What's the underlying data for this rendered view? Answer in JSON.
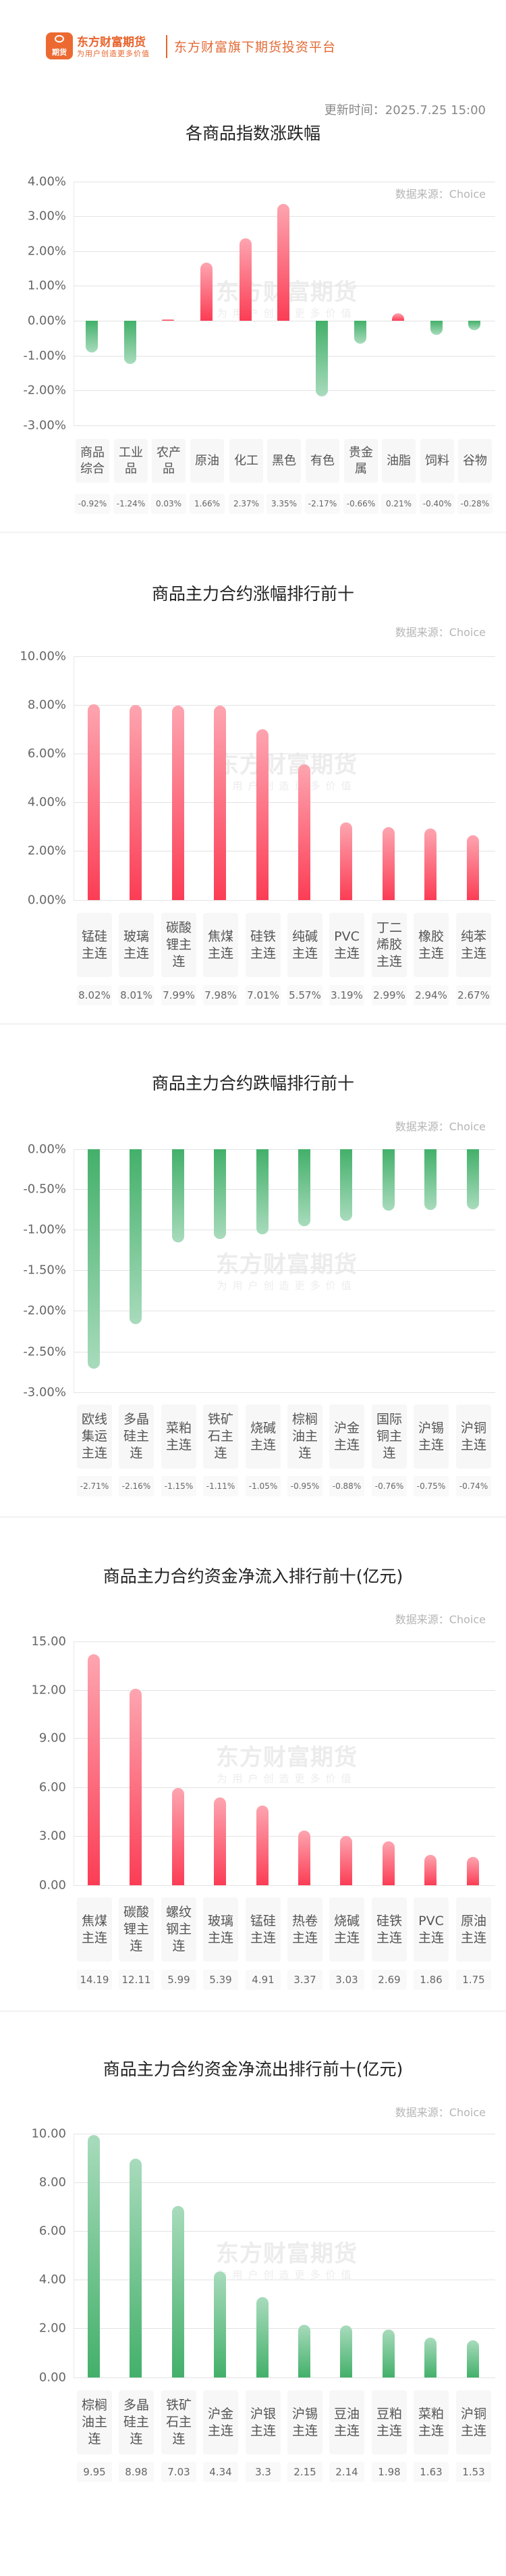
{
  "header": {
    "logo_badge": "期货",
    "brand_name": "东方财富期货",
    "brand_slogan": "为用户创造更多价值",
    "platform_text": "东方财富旗下期货投资平台",
    "update_time": "更新时间：2025.7.25 15:00"
  },
  "source_label": "数据来源：Choice",
  "watermark": {
    "main": "东方财富期货",
    "sub": "为用户创造更多价值"
  },
  "colors": {
    "brand": "#e8632b",
    "up": "#fb3d55",
    "down": "#43b06a"
  },
  "chart_data": [
    {
      "type": "bar",
      "title": "各商品指数涨跌幅",
      "categories": [
        "商品综合",
        "工业品",
        "农产品",
        "原油",
        "化工",
        "黑色",
        "有色",
        "贵金属",
        "油脂",
        "饲料",
        "谷物"
      ],
      "values": [
        -0.92,
        -1.24,
        0.03,
        1.66,
        2.37,
        3.35,
        -2.17,
        -0.66,
        0.21,
        -0.4,
        -0.28
      ],
      "value_labels": [
        "-0.92%",
        "-1.24%",
        "0.03%",
        "1.66%",
        "2.37%",
        "3.35%",
        "-2.17%",
        "-0.66%",
        "0.21%",
        "-0.40%",
        "-0.28%"
      ],
      "yticks": [
        "4.00%",
        "3.00%",
        "2.00%",
        "1.00%",
        "0.00%",
        "-1.00%",
        "-2.00%",
        "-3.00%"
      ],
      "ylim": [
        -3,
        4
      ],
      "unit": "%",
      "grid": true,
      "source": "数据来源：Choice"
    },
    {
      "type": "bar",
      "title": "商品主力合约涨幅排行前十",
      "categories": [
        "锰硅主连",
        "玻璃主连",
        "碳酸锂主连",
        "焦煤主连",
        "硅铁主连",
        "纯碱主连",
        "PVC主连",
        "丁二烯胶主连",
        "橡胶主连",
        "纯苯主连"
      ],
      "values": [
        8.02,
        8.01,
        7.99,
        7.98,
        7.01,
        5.57,
        3.19,
        2.99,
        2.94,
        2.67
      ],
      "value_labels": [
        "8.02%",
        "8.01%",
        "7.99%",
        "7.98%",
        "7.01%",
        "5.57%",
        "3.19%",
        "2.99%",
        "2.94%",
        "2.67%"
      ],
      "yticks": [
        "10.00%",
        "8.00%",
        "6.00%",
        "4.00%",
        "2.00%",
        "0.00%"
      ],
      "ylim": [
        0,
        10
      ],
      "unit": "%",
      "grid": true,
      "source": "数据来源：Choice"
    },
    {
      "type": "bar",
      "title": "商品主力合约跌幅排行前十",
      "categories": [
        "欧线集运主连",
        "多晶硅主连",
        "菜粕主连",
        "铁矿石主连",
        "烧碱主连",
        "棕榈油主连",
        "沪金主连",
        "国际铜主连",
        "沪锡主连",
        "沪铜主连"
      ],
      "values": [
        -2.71,
        -2.16,
        -1.15,
        -1.11,
        -1.05,
        -0.95,
        -0.88,
        -0.76,
        -0.75,
        -0.74
      ],
      "value_labels": [
        "-2.71%",
        "-2.16%",
        "-1.15%",
        "-1.11%",
        "-1.05%",
        "-0.95%",
        "-0.88%",
        "-0.76%",
        "-0.75%",
        "-0.74%"
      ],
      "yticks": [
        "0.00%",
        "-0.50%",
        "-1.00%",
        "-1.50%",
        "-2.00%",
        "-2.50%",
        "-3.00%"
      ],
      "ylim": [
        -3,
        0
      ],
      "unit": "%",
      "grid": true,
      "source": "数据来源：Choice"
    },
    {
      "type": "bar",
      "title": "商品主力合约资金净流入排行前十(亿元)",
      "categories": [
        "焦煤主连",
        "碳酸锂主连",
        "螺纹钢主连",
        "玻璃主连",
        "锰硅主连",
        "热卷主连",
        "烧碱主连",
        "硅铁主连",
        "PVC主连",
        "原油主连"
      ],
      "values": [
        14.19,
        12.11,
        5.99,
        5.39,
        4.91,
        3.37,
        3.03,
        2.69,
        1.86,
        1.75
      ],
      "value_labels": [
        "14.19",
        "12.11",
        "5.99",
        "5.39",
        "4.91",
        "3.37",
        "3.03",
        "2.69",
        "1.86",
        "1.75"
      ],
      "yticks": [
        "15.00",
        "12.00",
        "9.00",
        "6.00",
        "3.00",
        "0.00"
      ],
      "ylim": [
        0,
        15
      ],
      "unit": "亿元",
      "grid": true,
      "source": "数据来源：Choice"
    },
    {
      "type": "bar",
      "title": "商品主力合约资金净流出排行前十(亿元)",
      "categories": [
        "棕榈油主连",
        "多晶硅主连",
        "铁矿石主连",
        "沪金主连",
        "沪银主连",
        "沪锡主连",
        "豆油主连",
        "豆粕主连",
        "菜粕主连",
        "沪铜主连"
      ],
      "values": [
        9.95,
        8.98,
        7.03,
        4.34,
        3.3,
        2.15,
        2.14,
        1.98,
        1.63,
        1.53
      ],
      "value_labels": [
        "9.95",
        "8.98",
        "7.03",
        "4.34",
        "3.3",
        "2.15",
        "2.14",
        "1.98",
        "1.63",
        "1.53"
      ],
      "yticks": [
        "10.00",
        "8.00",
        "6.00",
        "4.00",
        "2.00",
        "0.00"
      ],
      "ylim": [
        0,
        10
      ],
      "unit": "亿元",
      "grid": true,
      "source": "数据来源：Choice"
    }
  ]
}
